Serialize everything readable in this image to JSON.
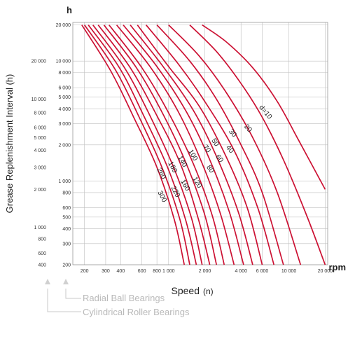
{
  "chart_data": {
    "type": "line",
    "title": "",
    "xlabel": "Speed",
    "xlabel_symbol": "(n)",
    "x_unit": "rpm",
    "ylabel": "Grease Replenishment Interval (h)",
    "y_unit": "h",
    "x_scale": "log",
    "y_scale": "log",
    "xlim": [
      160,
      21000
    ],
    "ylim": [
      200,
      21000
    ],
    "grid": true,
    "legend": "inline-labels",
    "color": "#cc1133",
    "x_ticks": [
      "200",
      "300",
      "400",
      "600",
      "800",
      "1 000",
      "2 000",
      "4 000",
      "6 000",
      "10 000",
      "20 000"
    ],
    "y_ticks_ball": [
      "20 000",
      "10 000",
      "8 000",
      "6 000",
      "5 000",
      "4 000",
      "3 000",
      "2 000",
      "1 000",
      "800",
      "600",
      "500",
      "400",
      "300",
      "200"
    ],
    "y_ticks_roller": [
      "20 000",
      "10 000",
      "8 000",
      "6 000",
      "5 000",
      "4 000",
      "3 000",
      "2 000",
      "1 000",
      "800",
      "600",
      "400"
    ],
    "series": [
      {
        "name": "d=10",
        "x": [
          1900,
          3000,
          5000,
          8000,
          12000,
          20000
        ],
        "y": [
          20000,
          14500,
          8800,
          4600,
          2200,
          850
        ]
      },
      {
        "name": "20",
        "x": [
          1500,
          2500,
          4000,
          6000,
          9000,
          14000,
          20000
        ],
        "y": [
          20000,
          12000,
          6500,
          3400,
          1500,
          520,
          200
        ]
      },
      {
        "name": "30",
        "x": [
          1000,
          1800,
          3000,
          5000,
          8000,
          12500
        ],
        "y": [
          20000,
          11000,
          5500,
          2300,
          800,
          200
        ]
      },
      {
        "name": "40",
        "x": [
          800,
          1500,
          2500,
          4000,
          6000,
          9000
        ],
        "y": [
          20000,
          10000,
          4800,
          2000,
          800,
          200
        ]
      },
      {
        "name": "50",
        "x": [
          650,
          1200,
          2000,
          3500,
          5500,
          7500
        ],
        "y": [
          20000,
          9500,
          4600,
          1800,
          600,
          200
        ]
      },
      {
        "name": "60",
        "x": [
          550,
          1000,
          1800,
          3000,
          4500,
          6000
        ],
        "y": [
          20000,
          9000,
          4200,
          1600,
          600,
          200
        ]
      },
      {
        "name": "70",
        "x": [
          480,
          900,
          1600,
          2500,
          3800,
          5000
        ],
        "y": [
          20000,
          9000,
          3900,
          1600,
          550,
          200
        ]
      },
      {
        "name": "80",
        "x": [
          420,
          800,
          1400,
          2200,
          3200,
          4200
        ],
        "y": [
          20000,
          9000,
          3800,
          1500,
          550,
          200
        ]
      },
      {
        "name": "100",
        "x": [
          370,
          700,
          1200,
          1900,
          2700,
          3500
        ],
        "y": [
          20000,
          9000,
          3800,
          1400,
          530,
          200
        ]
      },
      {
        "name": "120",
        "x": [
          320,
          600,
          1000,
          1600,
          2300,
          2900
        ],
        "y": [
          20000,
          8800,
          3700,
          1400,
          520,
          200
        ]
      },
      {
        "name": "140",
        "x": [
          290,
          540,
          900,
          1400,
          2000,
          2500
        ],
        "y": [
          20000,
          8800,
          3600,
          1400,
          520,
          200
        ]
      },
      {
        "name": "160",
        "x": [
          260,
          480,
          800,
          1250,
          1750,
          2200
        ],
        "y": [
          20000,
          8800,
          3500,
          1400,
          500,
          200
        ]
      },
      {
        "name": "180",
        "x": [
          235,
          430,
          700,
          1100,
          1550,
          1900
        ],
        "y": [
          20000,
          8800,
          3500,
          1300,
          490,
          200
        ]
      },
      {
        "name": "220",
        "x": [
          215,
          390,
          630,
          980,
          1380,
          1700
        ],
        "y": [
          20000,
          8800,
          3400,
          1300,
          480,
          200
        ]
      },
      {
        "name": "260",
        "x": [
          200,
          360,
          570,
          880,
          1240,
          1500
        ],
        "y": [
          20000,
          8500,
          3400,
          1300,
          480,
          200
        ]
      },
      {
        "name": "300",
        "x": [
          190,
          330,
          520,
          800,
          1120,
          1350
        ],
        "y": [
          20000,
          8300,
          3300,
          1300,
          470,
          200
        ]
      }
    ],
    "curve_labels": [
      {
        "series": "d=10",
        "text": "d=10",
        "rotate": 50
      },
      {
        "series": "20",
        "text": "20",
        "rotate": 50
      },
      {
        "series": "30",
        "text": "30",
        "rotate": 50
      },
      {
        "series": "40",
        "text": "40",
        "rotate": 50
      },
      {
        "series": "50",
        "text": "50",
        "rotate": 55
      },
      {
        "series": "60",
        "text": "60",
        "rotate": 55
      },
      {
        "series": "70",
        "text": "70",
        "rotate": 55
      },
      {
        "series": "80",
        "text": "80",
        "rotate": 55
      },
      {
        "series": "100",
        "text": "100",
        "rotate": 60
      },
      {
        "series": "120",
        "text": "120",
        "rotate": 60
      },
      {
        "series": "140",
        "text": "140",
        "rotate": 60
      },
      {
        "series": "160",
        "text": "160",
        "rotate": 60
      },
      {
        "series": "180",
        "text": "180",
        "rotate": 62
      },
      {
        "series": "220",
        "text": "220",
        "rotate": 62
      },
      {
        "series": "260",
        "text": "260",
        "rotate": 62
      },
      {
        "series": "300",
        "text": "300",
        "rotate": 62
      }
    ]
  },
  "legend_notes": {
    "radial": "Radial Ball Bearings",
    "cylindrical": "Cylindrical Roller Bearings"
  }
}
